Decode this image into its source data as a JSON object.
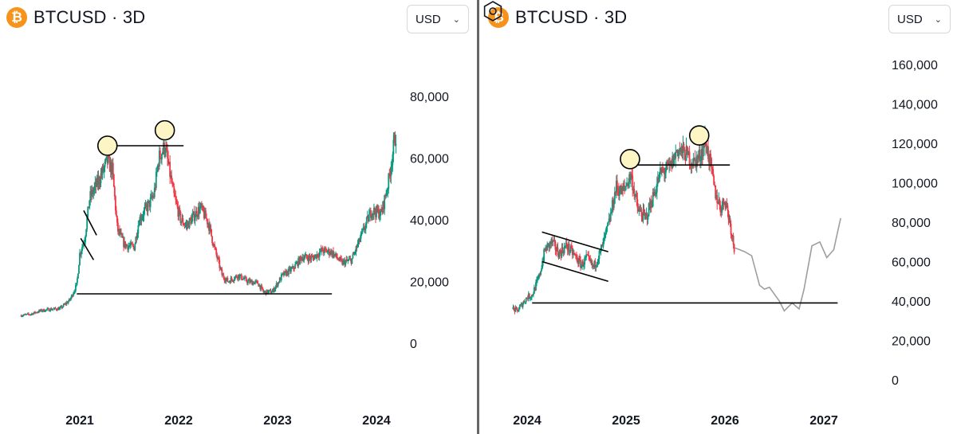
{
  "panels": [
    {
      "symbol": "BTCUSD",
      "separator": "·",
      "interval": "3D",
      "currency": "USD",
      "y_tick_labels": [
        "0",
        "20,000",
        "40,000",
        "60,000",
        "80,000"
      ],
      "x_tick_labels": [
        "2021",
        "2022",
        "2023",
        "2024"
      ]
    },
    {
      "symbol": "BTCUSD",
      "separator": "·",
      "interval": "3D",
      "currency": "USD",
      "y_tick_labels": [
        "0",
        "20,000",
        "40,000",
        "60,000",
        "80,000",
        "100,000",
        "120,000",
        "140,000",
        "160,000"
      ],
      "x_tick_labels": [
        "2024",
        "2025",
        "2026",
        "2027"
      ]
    }
  ],
  "colors": {
    "up": "#089981",
    "down": "#f23645",
    "projection": "#9e9e9e",
    "marker_fill": "#fdf5c4",
    "line": "#000000",
    "axis_text": "#131722",
    "coin": "#f7931a"
  },
  "icons": {
    "coin": "bitcoin-icon",
    "currency_chevron": "chevron-down-icon",
    "settings": "hexagon-settings-icon"
  },
  "chart_data": [
    {
      "type": "candlestick",
      "ylim": [
        0,
        80000
      ],
      "x_ticks": [
        2021,
        2022,
        2023,
        2024
      ],
      "price_path": [
        [
          2020.4,
          9000
        ],
        [
          2020.5,
          9400
        ],
        [
          2020.6,
          10500
        ],
        [
          2020.7,
          11000
        ],
        [
          2020.8,
          11200
        ],
        [
          2020.9,
          14000
        ],
        [
          2020.97,
          19000
        ],
        [
          2021.0,
          29000
        ],
        [
          2021.05,
          34000
        ],
        [
          2021.1,
          47000
        ],
        [
          2021.18,
          52000
        ],
        [
          2021.28,
          59000
        ],
        [
          2021.33,
          56000
        ],
        [
          2021.38,
          37000
        ],
        [
          2021.45,
          32000
        ],
        [
          2021.55,
          31000
        ],
        [
          2021.6,
          40000
        ],
        [
          2021.7,
          45000
        ],
        [
          2021.75,
          48000
        ],
        [
          2021.8,
          60000
        ],
        [
          2021.86,
          64000
        ],
        [
          2021.9,
          57000
        ],
        [
          2021.95,
          48000
        ],
        [
          2022.02,
          40000
        ],
        [
          2022.08,
          38000
        ],
        [
          2022.15,
          41000
        ],
        [
          2022.22,
          44000
        ],
        [
          2022.3,
          39000
        ],
        [
          2022.36,
          31000
        ],
        [
          2022.44,
          22000
        ],
        [
          2022.5,
          20000
        ],
        [
          2022.6,
          22000
        ],
        [
          2022.7,
          20000
        ],
        [
          2022.8,
          19500
        ],
        [
          2022.86,
          16500
        ],
        [
          2022.95,
          16800
        ],
        [
          2023.05,
          22000
        ],
        [
          2023.15,
          24000
        ],
        [
          2023.25,
          28000
        ],
        [
          2023.35,
          27500
        ],
        [
          2023.45,
          30000
        ],
        [
          2023.55,
          29500
        ],
        [
          2023.65,
          26000
        ],
        [
          2023.75,
          27000
        ],
        [
          2023.85,
          35000
        ],
        [
          2023.95,
          43000
        ],
        [
          2024.05,
          42000
        ],
        [
          2024.12,
          52000
        ],
        [
          2024.18,
          65000
        ],
        [
          2024.2,
          68000
        ]
      ],
      "annotations": {
        "double_top_markers": [
          [
            2021.28,
            64000
          ],
          [
            2021.86,
            69000
          ]
        ],
        "top_horizontal_line": {
          "x": [
            2021.28,
            2022.05
          ],
          "y": 64000
        },
        "support_line": {
          "x": [
            2020.97,
            2023.55
          ],
          "y": 16000
        },
        "flag_lines": [
          [
            [
              2021.04,
              43000
            ],
            [
              2021.17,
              35000
            ]
          ],
          [
            [
              2021.01,
              34000
            ],
            [
              2021.14,
              27000
            ]
          ]
        ]
      }
    },
    {
      "type": "candlestick",
      "ylim": [
        0,
        160000
      ],
      "x_ticks": [
        2024,
        2025,
        2026,
        2027
      ],
      "price_path": [
        [
          2023.85,
          36000
        ],
        [
          2023.9,
          35000
        ],
        [
          2024.0,
          42000
        ],
        [
          2024.05,
          43000
        ],
        [
          2024.12,
          52000
        ],
        [
          2024.18,
          66000
        ],
        [
          2024.25,
          70000
        ],
        [
          2024.32,
          64000
        ],
        [
          2024.4,
          68000
        ],
        [
          2024.48,
          63000
        ],
        [
          2024.55,
          58000
        ],
        [
          2024.6,
          62000
        ],
        [
          2024.67,
          57000
        ],
        [
          2024.75,
          66000
        ],
        [
          2024.83,
          80000
        ],
        [
          2024.9,
          98000
        ],
        [
          2024.96,
          95000
        ],
        [
          2025.05,
          104000
        ],
        [
          2025.12,
          86000
        ],
        [
          2025.2,
          82000
        ],
        [
          2025.28,
          94000
        ],
        [
          2025.35,
          105000
        ],
        [
          2025.45,
          108000
        ],
        [
          2025.52,
          117000
        ],
        [
          2025.6,
          115000
        ],
        [
          2025.68,
          110000
        ],
        [
          2025.75,
          114000
        ],
        [
          2025.8,
          122000
        ],
        [
          2025.85,
          110000
        ],
        [
          2025.9,
          95000
        ],
        [
          2025.96,
          87000
        ],
        [
          2026.0,
          92000
        ],
        [
          2026.05,
          80000
        ],
        [
          2026.1,
          65000
        ]
      ],
      "projection_path": [
        [
          2026.1,
          67000
        ],
        [
          2026.15,
          66000
        ],
        [
          2026.2,
          65000
        ],
        [
          2026.27,
          63000
        ],
        [
          2026.35,
          48000
        ],
        [
          2026.4,
          46000
        ],
        [
          2026.45,
          47000
        ],
        [
          2026.55,
          40000
        ],
        [
          2026.6,
          35000
        ],
        [
          2026.68,
          39000
        ],
        [
          2026.75,
          36000
        ],
        [
          2026.8,
          46000
        ],
        [
          2026.88,
          68000
        ],
        [
          2026.96,
          70000
        ],
        [
          2027.03,
          62000
        ],
        [
          2027.1,
          66000
        ],
        [
          2027.17,
          82000
        ]
      ],
      "annotations": {
        "double_top_markers": [
          [
            2025.04,
            112000
          ],
          [
            2025.74,
            124000
          ]
        ],
        "top_horizontal_line": {
          "x": [
            2025.04,
            2026.05
          ],
          "y": 109000
        },
        "support_line": {
          "x": [
            2024.05,
            2027.14
          ],
          "y": 39000
        },
        "channel_lines": [
          [
            [
              2024.15,
              75000
            ],
            [
              2024.82,
              65000
            ]
          ],
          [
            [
              2024.15,
              60000
            ],
            [
              2024.82,
              50000
            ]
          ]
        ]
      }
    }
  ]
}
